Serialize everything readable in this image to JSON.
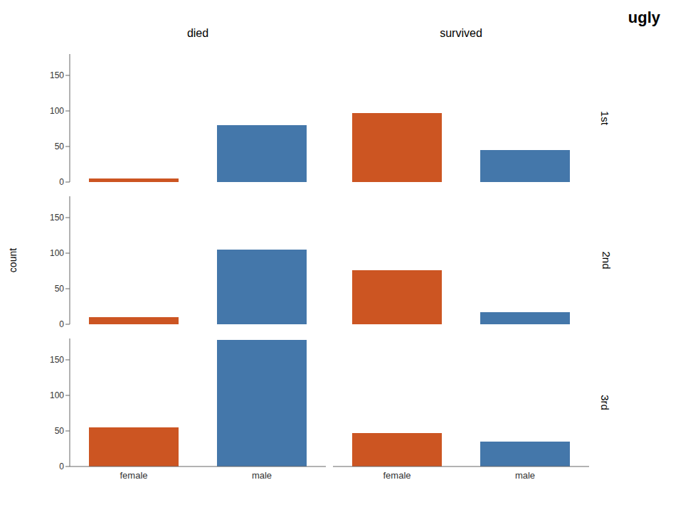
{
  "chart_data": {
    "type": "bar",
    "title": "ugly",
    "ylabel": "count",
    "columns": [
      "died",
      "survived"
    ],
    "rows": [
      "1st",
      "2nd",
      "3rd"
    ],
    "categories": [
      "female",
      "male"
    ],
    "colors": [
      "#CC5522",
      "#4477AA"
    ],
    "ylim": [
      0,
      180
    ],
    "yticks": [
      0,
      50,
      100,
      150
    ],
    "grid": false,
    "panels": [
      {
        "row": "1st",
        "column": "died",
        "values": [
          5,
          80
        ]
      },
      {
        "row": "1st",
        "column": "survived",
        "values": [
          97,
          45
        ]
      },
      {
        "row": "2nd",
        "column": "died",
        "values": [
          10,
          105
        ]
      },
      {
        "row": "2nd",
        "column": "survived",
        "values": [
          76,
          17
        ]
      },
      {
        "row": "3rd",
        "column": "died",
        "values": [
          55,
          178
        ]
      },
      {
        "row": "3rd",
        "column": "survived",
        "values": [
          47,
          35
        ]
      }
    ]
  }
}
